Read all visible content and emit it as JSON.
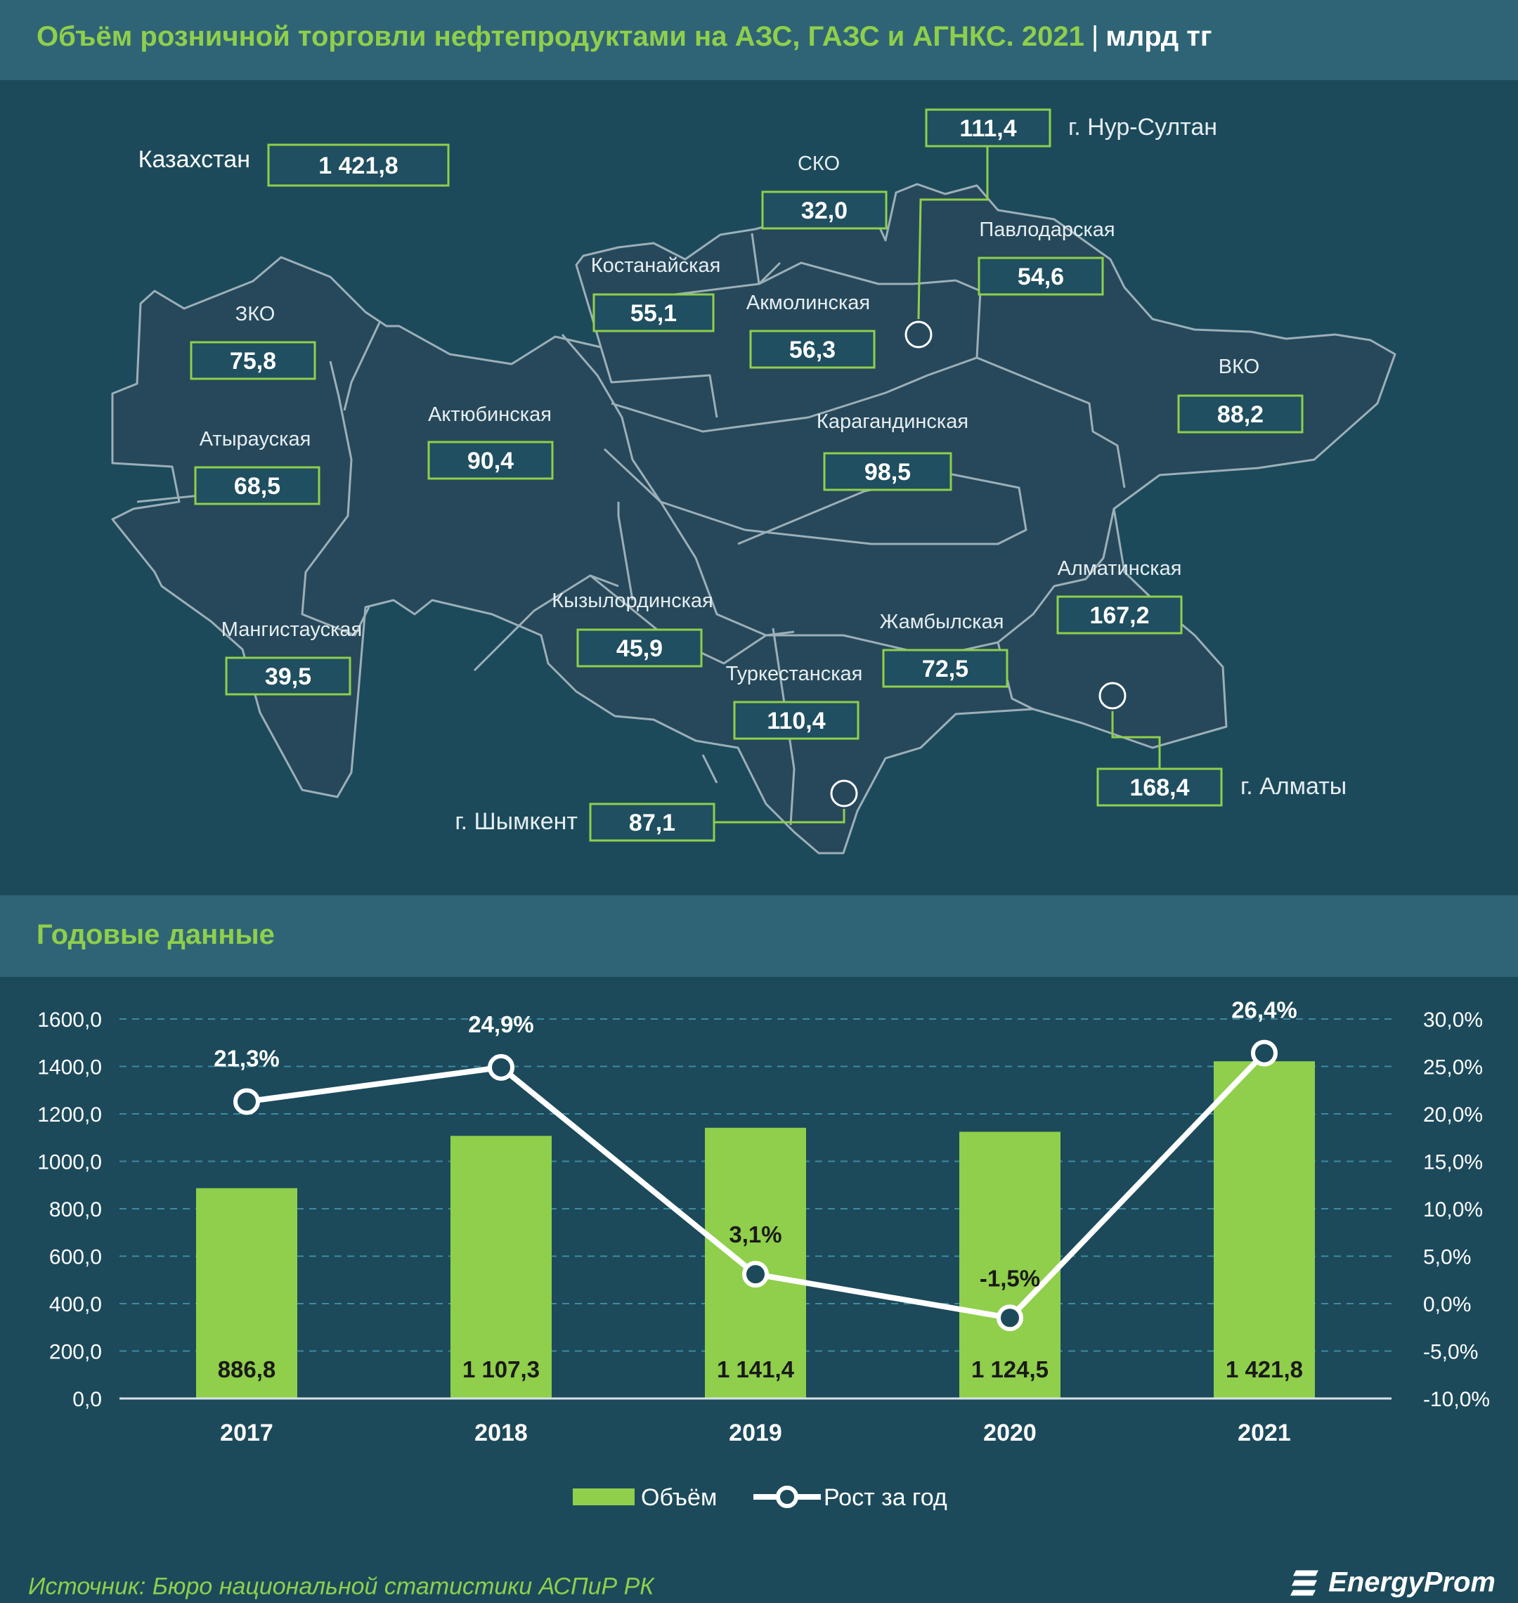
{
  "header": {
    "title": "Объём розничной торговли нефтепродуктами на АЗС, ГАЗС и АГНКС. 2021",
    "separator": "|",
    "unit": "млрд тг"
  },
  "map": {
    "kazakhstan_label": "Казахстан",
    "kazakhstan_value": "1 421,8",
    "regions": [
      {
        "name": "ЗКО",
        "value": "75,8"
      },
      {
        "name": "Атырауская",
        "value": "68,5"
      },
      {
        "name": "Мангистауская",
        "value": "39,5"
      },
      {
        "name": "Актюбинская",
        "value": "90,4"
      },
      {
        "name": "Костанайская",
        "value": "55,1"
      },
      {
        "name": "СКО",
        "value": "32,0"
      },
      {
        "name": "Акмолинская",
        "value": "56,3"
      },
      {
        "name": "Павлодарская",
        "value": "54,6"
      },
      {
        "name": "ВКО",
        "value": "88,2"
      },
      {
        "name": "Карагандинская",
        "value": "98,5"
      },
      {
        "name": "Кызылординская",
        "value": "45,9"
      },
      {
        "name": "Туркестанская",
        "value": "110,4"
      },
      {
        "name": "Жамбылская",
        "value": "72,5"
      },
      {
        "name": "Алматинская",
        "value": "167,2"
      }
    ],
    "cities": [
      {
        "name": "г. Нур-Султан",
        "value": "111,4"
      },
      {
        "name": "г. Алматы",
        "value": "168,4"
      },
      {
        "name": "г. Шымкент",
        "value": "87,1"
      }
    ]
  },
  "section": {
    "annual_title": "Годовые данные"
  },
  "chart_data": {
    "type": "bar",
    "categories": [
      "2017",
      "2018",
      "2019",
      "2020",
      "2021"
    ],
    "series": [
      {
        "name": "Объём",
        "type": "bar",
        "axis": "left",
        "values": [
          886.8,
          1107.3,
          1141.4,
          1124.5,
          1421.8
        ],
        "labels": [
          "886,8",
          "1 107,3",
          "1 141,4",
          "1 124,5",
          "1 421,8"
        ]
      },
      {
        "name": "Рост за год",
        "type": "line",
        "axis": "right",
        "values": [
          21.3,
          24.9,
          3.1,
          -1.5,
          26.4
        ],
        "labels": [
          "21,3%",
          "24,9%",
          "3,1%",
          "-1,5%",
          "26,4%"
        ]
      }
    ],
    "y_left": {
      "min": 0,
      "max": 1600,
      "step": 200,
      "ticks": [
        "0,0",
        "200,0",
        "400,0",
        "600,0",
        "800,0",
        "1000,0",
        "1200,0",
        "1400,0",
        "1600,0"
      ]
    },
    "y_right": {
      "min": -10,
      "max": 30,
      "step": 5,
      "ticks": [
        "-10,0%",
        "-5,0%",
        "0,0%",
        "5,0%",
        "10,0%",
        "15,0%",
        "20,0%",
        "25,0%",
        "30,0%"
      ]
    },
    "grid": true,
    "legend": "bottom-center"
  },
  "colors": {
    "bar": "#8fcf4b",
    "line": "#ffffff",
    "accent": "#8fcf4b",
    "map_fill": "#26485a",
    "background": "#1c4a5b",
    "band": "#2f6477"
  },
  "footer": {
    "source": "Источник: Бюро национальной статистики АСПиР РК",
    "logo": "EnergyProm",
    "logo_icon": "energyprom-logo-icon"
  }
}
